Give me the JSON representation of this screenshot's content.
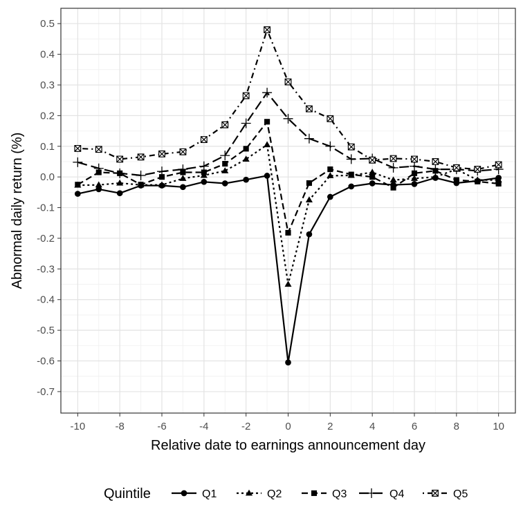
{
  "chart_data": {
    "type": "line",
    "xlabel": "Relative date to earnings announcement day",
    "ylabel": "Abnormal daily return (%)",
    "xlim": [
      -10.8,
      10.8
    ],
    "ylim": [
      -0.77,
      0.55
    ],
    "x_ticks": [
      -10,
      -8,
      -6,
      -4,
      -2,
      0,
      2,
      4,
      6,
      8,
      10
    ],
    "y_ticks": [
      0.5,
      0.4,
      0.3,
      0.2,
      0.1,
      0.0,
      -0.1,
      -0.2,
      -0.3,
      -0.4,
      -0.5,
      -0.6,
      -0.7
    ],
    "y_tick_labels": [
      "0.5",
      "0.4",
      "0.3",
      "0.2",
      "0.1",
      "0.0",
      "-0.1",
      "-0.2",
      "-0.3",
      "-0.4",
      "-0.5",
      "-0.6",
      "-0.7"
    ],
    "grid": true,
    "legend_title": "Quintile",
    "legend_position": "bottom",
    "x": [
      -10,
      -9,
      -8,
      -7,
      -6,
      -5,
      -4,
      -3,
      -2,
      -1,
      0,
      1,
      2,
      3,
      4,
      5,
      6,
      7,
      8,
      9,
      10
    ],
    "series": [
      {
        "name": "Q1",
        "marker": "circle",
        "dash": "solid",
        "values": [
          -0.055,
          -0.04,
          -0.053,
          -0.028,
          -0.028,
          -0.033,
          -0.016,
          -0.021,
          -0.009,
          0.004,
          -0.605,
          -0.187,
          -0.065,
          -0.031,
          -0.021,
          -0.026,
          -0.023,
          -0.003,
          -0.02,
          -0.013,
          -0.003
        ]
      },
      {
        "name": "Q2",
        "marker": "triangle",
        "dash": "dotted",
        "values": [
          -0.027,
          -0.026,
          -0.02,
          -0.026,
          -0.026,
          -0.005,
          0.005,
          0.02,
          0.058,
          0.105,
          -0.35,
          -0.075,
          0.004,
          0.005,
          0.015,
          -0.01,
          -0.005,
          0.0,
          0.025,
          -0.01,
          -0.01
        ]
      },
      {
        "name": "Q3",
        "marker": "square",
        "dash": "dashed",
        "values": [
          -0.025,
          0.015,
          0.012,
          -0.025,
          0.0,
          0.015,
          0.015,
          0.043,
          0.092,
          0.18,
          -0.182,
          -0.02,
          0.025,
          0.008,
          0.0,
          -0.035,
          0.012,
          0.02,
          -0.01,
          -0.015,
          -0.022
        ]
      },
      {
        "name": "Q4",
        "marker": "plus",
        "dash": "longdash",
        "values": [
          0.048,
          0.028,
          0.012,
          0.005,
          0.018,
          0.025,
          0.035,
          0.07,
          0.175,
          0.275,
          0.19,
          0.125,
          0.1,
          0.058,
          0.06,
          0.03,
          0.035,
          0.025,
          0.025,
          0.02,
          0.025
        ]
      },
      {
        "name": "Q5",
        "marker": "boxx",
        "dash": "dotdash",
        "values": [
          0.093,
          0.09,
          0.058,
          0.065,
          0.075,
          0.082,
          0.122,
          0.17,
          0.265,
          0.48,
          0.31,
          0.222,
          0.19,
          0.098,
          0.055,
          0.06,
          0.058,
          0.05,
          0.03,
          0.025,
          0.04
        ]
      }
    ]
  }
}
